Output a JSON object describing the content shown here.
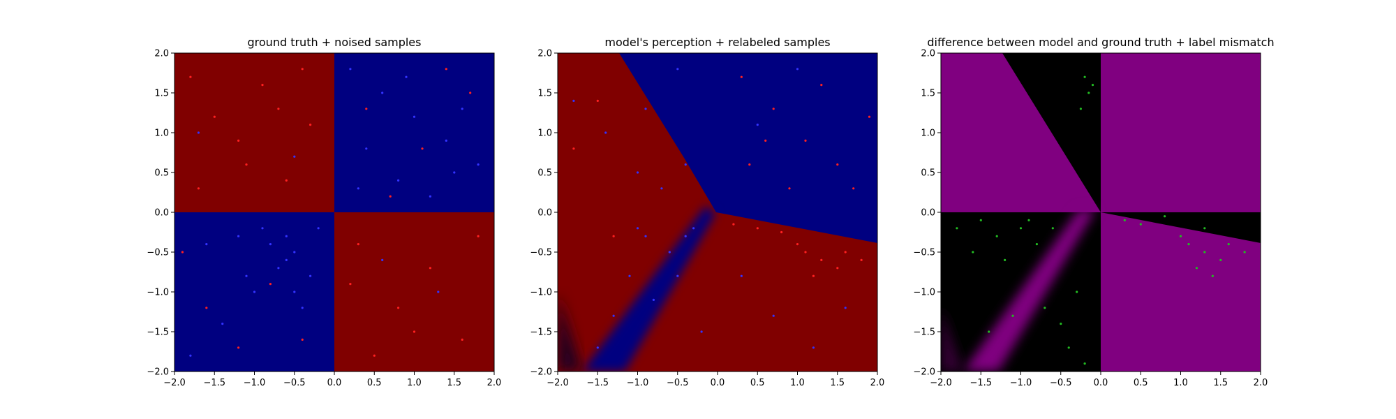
{
  "chart_data": [
    {
      "type": "scatter",
      "title": "ground truth + noised samples",
      "xlim": [
        -2.0,
        2.0
      ],
      "ylim": [
        -2.0,
        2.0
      ],
      "xticks": [
        "−2.0",
        "−1.5",
        "−1.0",
        "−0.5",
        "0.0",
        "0.5",
        "1.0",
        "1.5",
        "2.0"
      ],
      "yticks": [
        "−2.0",
        "−1.5",
        "−1.0",
        "−0.5",
        "0.0",
        "0.5",
        "1.0",
        "1.5",
        "2.0"
      ],
      "background": "XOR-style quadrant map: top-left and bottom-right dark red, top-right and bottom-left dark blue",
      "colors": {
        "red_region": "#800000",
        "blue_region": "#000080",
        "red_points": "#ff2020",
        "blue_points": "#3333ff"
      },
      "series": [
        {
          "values": [
            [
              -1.8,
              1.7
            ],
            [
              -1.5,
              1.2
            ],
            [
              -1.2,
              0.9
            ],
            [
              -0.9,
              1.6
            ],
            [
              -0.6,
              0.4
            ],
            [
              -0.3,
              1.1
            ],
            [
              -1.7,
              0.3
            ],
            [
              -0.4,
              1.8
            ],
            [
              -1.1,
              0.6
            ],
            [
              -0.7,
              1.3
            ],
            [
              0.3,
              -0.4
            ],
            [
              0.8,
              -1.2
            ],
            [
              1.2,
              -0.7
            ],
            [
              1.6,
              -1.6
            ],
            [
              0.5,
              -1.8
            ],
            [
              1.8,
              -0.3
            ],
            [
              1.0,
              -1.5
            ],
            [
              0.2,
              -0.9
            ],
            [
              -1.6,
              -1.2
            ],
            [
              -1.2,
              -1.7
            ],
            [
              -0.8,
              -0.9
            ],
            [
              -0.4,
              -1.6
            ],
            [
              -1.9,
              -0.5
            ],
            [
              0.4,
              1.3
            ],
            [
              1.1,
              0.8
            ],
            [
              1.7,
              1.5
            ],
            [
              0.7,
              0.2
            ],
            [
              1.4,
              1.8
            ]
          ]
        },
        {
          "values": [
            [
              0.2,
              1.8
            ],
            [
              0.6,
              1.5
            ],
            [
              1.0,
              1.2
            ],
            [
              1.4,
              0.9
            ],
            [
              1.8,
              0.6
            ],
            [
              0.4,
              0.8
            ],
            [
              0.8,
              0.4
            ],
            [
              1.2,
              0.2
            ],
            [
              1.6,
              1.3
            ],
            [
              0.3,
              0.3
            ],
            [
              0.9,
              1.7
            ],
            [
              1.5,
              0.5
            ],
            [
              -1.8,
              -1.8
            ],
            [
              -1.4,
              -1.4
            ],
            [
              -1.0,
              -1.0
            ],
            [
              -0.6,
              -0.6
            ],
            [
              -0.2,
              -0.2
            ],
            [
              -1.6,
              -0.4
            ],
            [
              -0.4,
              -1.2
            ],
            [
              -1.2,
              -0.3
            ],
            [
              -0.8,
              -0.4
            ],
            [
              -0.6,
              -0.3
            ],
            [
              -0.5,
              -0.5
            ],
            [
              -0.7,
              -0.7
            ],
            [
              -0.3,
              -0.8
            ],
            [
              -0.9,
              -0.2
            ],
            [
              -1.1,
              -0.8
            ],
            [
              -0.5,
              -1.0
            ],
            [
              -1.7,
              1.0
            ],
            [
              -0.5,
              0.7
            ],
            [
              1.3,
              -1.0
            ],
            [
              0.6,
              -0.6
            ]
          ]
        }
      ]
    },
    {
      "type": "scatter",
      "title": "model's perception + relabeled samples",
      "xlim": [
        -2.0,
        2.0
      ],
      "ylim": [
        -2.0,
        2.0
      ],
      "xticks": [
        "−2.0",
        "−1.5",
        "−1.0",
        "−0.5",
        "0.0",
        "0.5",
        "1.0",
        "1.5",
        "2.0"
      ],
      "yticks": [
        "−2.0",
        "−1.5",
        "−1.0",
        "−0.5",
        "0.0",
        "0.5",
        "1.0",
        "1.5",
        "2.0"
      ],
      "background": "learned decision regions: blue region top-right bounded by a boundary through about (-1.2,2.0) and (0,0) and a boundary toward (2,-0.4); a second blue wedge extends from (0,0) toward bottom-left; remaining area dark red",
      "colors": {
        "red_region": "#800000",
        "blue_region": "#000080",
        "red_points": "#ff2020",
        "blue_points": "#3333ff"
      },
      "series": [
        {
          "values": [
            [
              0.3,
              1.7
            ],
            [
              0.7,
              1.3
            ],
            [
              1.1,
              0.9
            ],
            [
              1.5,
              0.6
            ],
            [
              1.9,
              1.2
            ],
            [
              0.4,
              0.6
            ],
            [
              0.9,
              0.3
            ],
            [
              1.3,
              1.6
            ],
            [
              0.6,
              0.9
            ],
            [
              1.7,
              0.3
            ],
            [
              0.2,
              -0.15
            ],
            [
              0.5,
              -0.2
            ],
            [
              0.8,
              -0.25
            ],
            [
              1.1,
              -0.5
            ],
            [
              1.3,
              -0.6
            ],
            [
              1.5,
              -0.7
            ],
            [
              1.2,
              -0.8
            ],
            [
              1.6,
              -0.5
            ],
            [
              1.0,
              -0.4
            ],
            [
              1.8,
              -0.6
            ],
            [
              -1.8,
              0.8
            ],
            [
              -1.5,
              1.4
            ],
            [
              -1.3,
              -0.3
            ]
          ]
        },
        {
          "values": [
            [
              -1.8,
              1.4
            ],
            [
              -1.4,
              1.0
            ],
            [
              -1.0,
              0.5
            ],
            [
              -0.7,
              0.3
            ],
            [
              -0.4,
              0.6
            ],
            [
              -0.9,
              -0.3
            ],
            [
              -0.6,
              -0.5
            ],
            [
              -0.4,
              -0.3
            ],
            [
              -1.1,
              -0.8
            ],
            [
              -0.8,
              -1.1
            ],
            [
              -1.3,
              -1.3
            ],
            [
              -1.5,
              -1.7
            ],
            [
              -0.5,
              -0.8
            ],
            [
              -0.3,
              -0.2
            ],
            [
              -0.9,
              1.3
            ],
            [
              -0.5,
              1.8
            ],
            [
              0.3,
              -0.8
            ],
            [
              0.7,
              -1.3
            ],
            [
              1.2,
              -1.7
            ],
            [
              -0.2,
              -1.5
            ],
            [
              1.6,
              -1.2
            ],
            [
              0.5,
              1.1
            ],
            [
              1.0,
              1.8
            ],
            [
              -1.0,
              -0.2
            ]
          ]
        }
      ]
    },
    {
      "type": "scatter",
      "title": "difference between model and ground truth + label mismatch",
      "xlim": [
        -2.0,
        2.0
      ],
      "ylim": [
        -2.0,
        2.0
      ],
      "xticks": [
        "−2.0",
        "−1.5",
        "−1.0",
        "−0.5",
        "0.0",
        "0.5",
        "1.0",
        "1.5",
        "2.0"
      ],
      "yticks": [
        "−2.0",
        "−1.5",
        "−1.0",
        "−0.5",
        "0.0",
        "0.5",
        "1.0",
        "1.5",
        "2.0"
      ],
      "background": "magenta where model disagrees with ground truth, black where it agrees: magenta fills top-left above the model boundary, top-right quadrant, bottom-right below the model boundary, and a diagonal band in bottom-left",
      "colors": {
        "mismatch_region": "#800080",
        "match_region": "#000000",
        "mismatch_points": "#22bb22"
      },
      "series": [
        {
          "values": [
            [
              -0.2,
              1.7
            ],
            [
              -0.15,
              1.5
            ],
            [
              -0.25,
              1.3
            ],
            [
              -0.1,
              1.6
            ],
            [
              -1.8,
              -0.2
            ],
            [
              -1.6,
              -0.5
            ],
            [
              -1.3,
              -0.3
            ],
            [
              -1.0,
              -0.2
            ],
            [
              -0.8,
              -0.4
            ],
            [
              -0.6,
              -0.2
            ],
            [
              -1.5,
              -0.1
            ],
            [
              -1.2,
              -0.6
            ],
            [
              -0.9,
              -0.1
            ],
            [
              -1.1,
              -1.3
            ],
            [
              -1.4,
              -1.5
            ],
            [
              -0.7,
              -1.2
            ],
            [
              -0.4,
              -1.7
            ],
            [
              -0.3,
              -1.0
            ],
            [
              -0.5,
              -1.4
            ],
            [
              -0.2,
              -1.9
            ],
            [
              0.3,
              -0.1
            ],
            [
              0.5,
              -0.15
            ],
            [
              0.8,
              -0.05
            ],
            [
              1.1,
              -0.4
            ],
            [
              1.3,
              -0.5
            ],
            [
              1.5,
              -0.6
            ],
            [
              1.2,
              -0.7
            ],
            [
              1.0,
              -0.3
            ],
            [
              1.4,
              -0.8
            ],
            [
              1.6,
              -0.4
            ],
            [
              1.8,
              -0.5
            ],
            [
              1.3,
              -0.2
            ]
          ]
        }
      ]
    }
  ]
}
